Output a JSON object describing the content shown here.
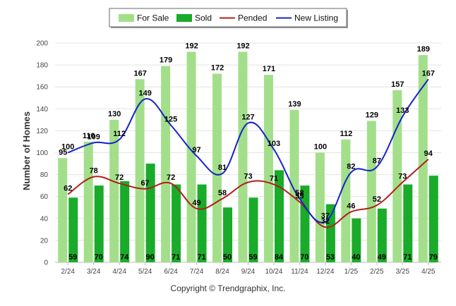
{
  "chart_data": {
    "type": "bar",
    "categories": [
      "2/24",
      "3/24",
      "4/24",
      "5/24",
      "6/24",
      "7/24",
      "8/24",
      "9/24",
      "10/24",
      "11/24",
      "12/24",
      "1/25",
      "2/25",
      "3/25",
      "4/25"
    ],
    "ylabel": "Number of Homes",
    "ylim": [
      0,
      200
    ],
    "yticks": [
      0,
      20,
      40,
      60,
      80,
      100,
      120,
      140,
      160,
      180,
      200
    ],
    "grid": true,
    "legend_position": "top",
    "series": [
      {
        "name": "For Sale",
        "kind": "bar",
        "color": "#a3df8a",
        "values": [
          95,
          110,
          130,
          167,
          179,
          192,
          172,
          192,
          171,
          139,
          100,
          112,
          129,
          157,
          189
        ]
      },
      {
        "name": "Sold",
        "kind": "bar",
        "color": "#1aab2a",
        "values": [
          59,
          70,
          74,
          90,
          71,
          71,
          50,
          59,
          84,
          70,
          53,
          40,
          49,
          71,
          79
        ]
      },
      {
        "name": "Pended",
        "kind": "line",
        "color": "#b0201a",
        "values": [
          62,
          78,
          72,
          67,
          72,
          49,
          58,
          73,
          71,
          55,
          32,
          46,
          52,
          73,
          94
        ]
      },
      {
        "name": "New Listing",
        "kind": "line",
        "color": "#1424c8",
        "values": [
          100,
          109,
          112,
          149,
          125,
          97,
          81,
          127,
          103,
          58,
          37,
          82,
          87,
          133,
          167
        ]
      }
    ]
  },
  "credit": "Copyright © Trendgraphix, Inc."
}
